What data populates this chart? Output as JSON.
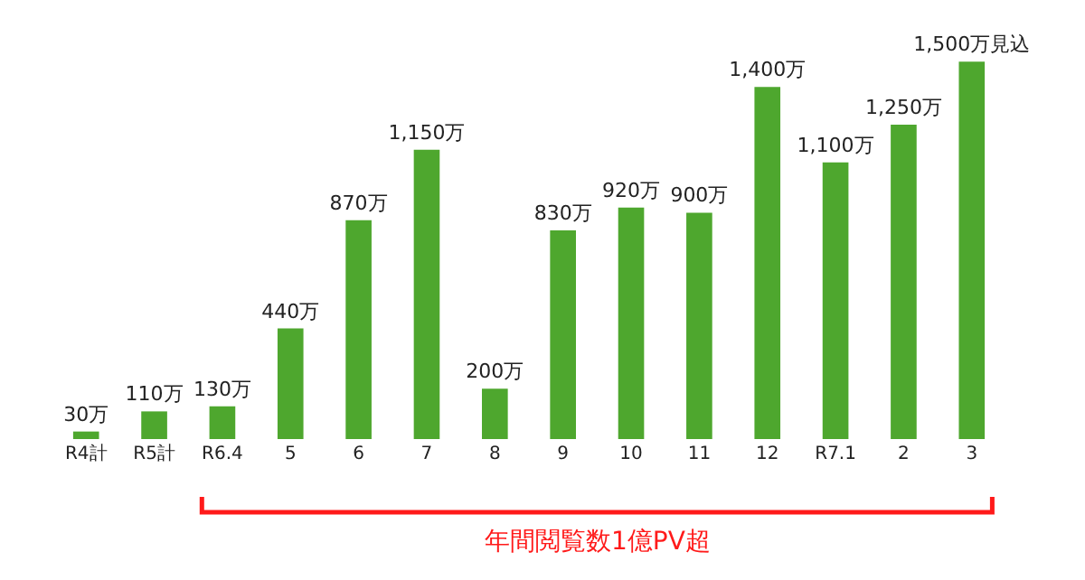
{
  "chart_data": {
    "type": "bar",
    "categories": [
      "R4計",
      "R5計",
      "R6.4",
      "5",
      "6",
      "7",
      "8",
      "9",
      "10",
      "11",
      "12",
      "R7.1",
      "2",
      "3"
    ],
    "values": [
      30,
      110,
      130,
      440,
      870,
      1150,
      200,
      830,
      920,
      900,
      1400,
      1100,
      1250,
      1500
    ],
    "value_labels": [
      "30万",
      "110万",
      "130万",
      "440万",
      "870万",
      "1,150万",
      "200万",
      "830万",
      "920万",
      "900万",
      "1,400万",
      "1,100万",
      "1,250万",
      "1,500万見込"
    ],
    "color": "#4ea72e",
    "annotations": [
      "年間閲覧数1億PV超"
    ]
  }
}
